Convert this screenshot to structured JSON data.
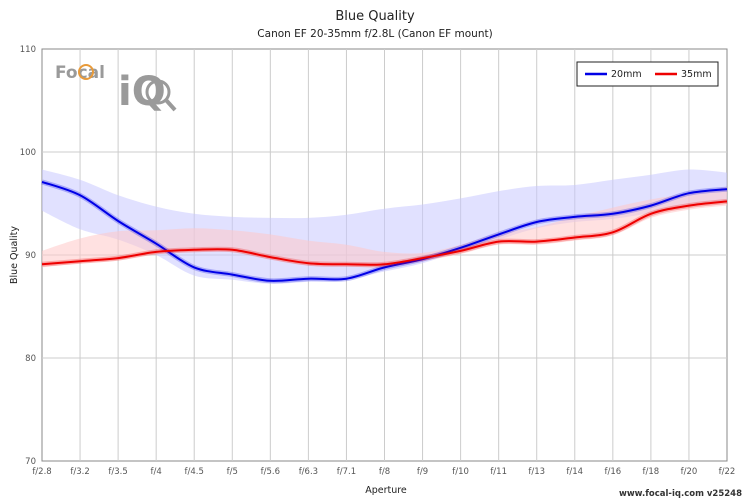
{
  "branding": {
    "logo_top": "Focal",
    "logo_bottom": "iQ",
    "footer": "www.focal-iq.com  v25248"
  },
  "colors": {
    "series_20mm": "#0000e6",
    "series_35mm": "#ee0000",
    "band_20mm": "#c8c8ff",
    "band_35mm": "#ffc8c8",
    "grid": "#cccccc",
    "frame": "#888888"
  },
  "chart_data": {
    "type": "line",
    "title": "Blue Quality",
    "subtitle": "Canon EF 20-35mm f/2.8L (Canon EF mount)",
    "xlabel": "Aperture",
    "ylabel": "Blue Quality",
    "ylim": [
      70,
      110
    ],
    "yticks": [
      70,
      80,
      90,
      100,
      110
    ],
    "grid": true,
    "legend_position": "top-right",
    "categories": [
      "f/2.8",
      "f/3.2",
      "f/3.5",
      "f/4",
      "f/4.5",
      "f/5",
      "f/5.6",
      "f/6.3",
      "f/7.1",
      "f/8",
      "f/9",
      "f/10",
      "f/11",
      "f/13",
      "f/14",
      "f/16",
      "f/18",
      "f/20",
      "f/22"
    ],
    "series": [
      {
        "name": "20mm",
        "color_key": "series_20mm",
        "band_key": "band_20mm",
        "values": [
          97.1,
          95.8,
          93.3,
          91.1,
          88.8,
          88.1,
          87.5,
          87.7,
          87.7,
          88.8,
          89.6,
          90.7,
          92.0,
          93.2,
          93.7,
          94.0,
          94.8,
          96.0,
          96.4
        ],
        "band_high": [
          98.3,
          97.3,
          95.8,
          94.7,
          94.0,
          93.7,
          93.6,
          93.6,
          93.9,
          94.5,
          94.9,
          95.5,
          96.2,
          96.7,
          96.8,
          97.3,
          97.8,
          98.3,
          98.0
        ],
        "band_low": [
          94.3,
          92.5,
          91.5,
          90.0,
          88.0,
          87.6,
          87.2,
          87.4,
          87.6,
          88.4,
          89.2,
          90.4,
          91.5,
          92.6,
          93.2,
          93.5,
          94.1,
          94.9,
          95.2
        ]
      },
      {
        "name": "35mm",
        "color_key": "series_35mm",
        "band_key": "band_35mm",
        "values": [
          89.1,
          89.4,
          89.7,
          90.3,
          90.5,
          90.5,
          89.8,
          89.2,
          89.1,
          89.1,
          89.7,
          90.4,
          91.3,
          91.3,
          91.7,
          92.2,
          94.0,
          94.8,
          95.2
        ],
        "band_high": [
          90.4,
          91.6,
          92.3,
          92.4,
          92.6,
          92.4,
          92.0,
          91.4,
          91.0,
          90.3,
          90.2,
          91.0,
          92.1,
          92.7,
          93.7,
          94.6,
          95.4,
          96.0,
          96.6
        ],
        "band_low": [
          88.8,
          89.2,
          89.5,
          90.1,
          90.3,
          90.3,
          89.6,
          89.0,
          88.9,
          88.8,
          89.4,
          90.1,
          91.0,
          91.0,
          91.4,
          91.9,
          93.6,
          94.4,
          94.8
        ]
      }
    ]
  }
}
